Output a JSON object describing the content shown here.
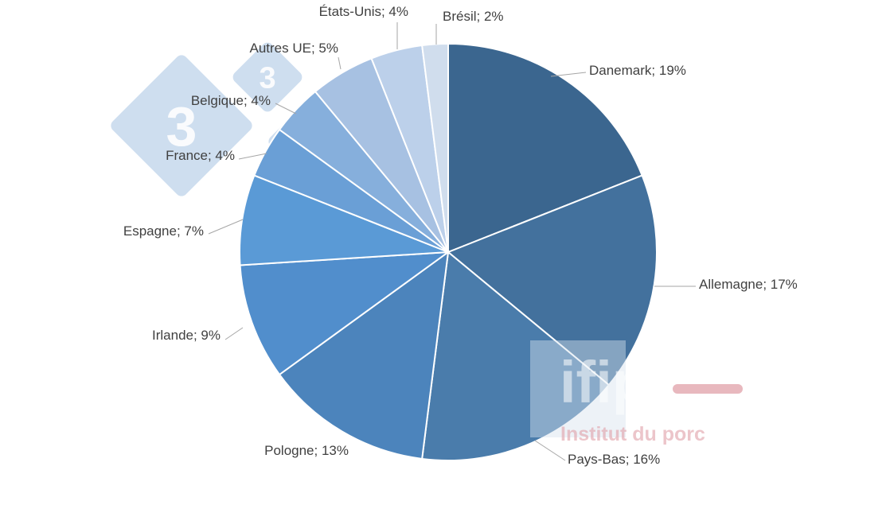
{
  "chart_data": {
    "type": "pie",
    "title": "",
    "start_angle_deg": 0,
    "direction": "clockwise",
    "legend": "none",
    "data_labels": "outside with leader lines",
    "slices": [
      {
        "name": "Danemark",
        "value": 19,
        "label": "Danemark; 19%",
        "color": "#3b668f"
      },
      {
        "name": "Allemagne",
        "value": 17,
        "label": "Allemagne; 17%",
        "color": "#43719d"
      },
      {
        "name": "Pays-Bas",
        "value": 16,
        "label": "Pays-Bas; 16%",
        "color": "#4a7cab"
      },
      {
        "name": "Pologne",
        "value": 13,
        "label": "Pologne; 13%",
        "color": "#4c84bc"
      },
      {
        "name": "Irlande",
        "value": 9,
        "label": "Irlande; 9%",
        "color": "#518ecc"
      },
      {
        "name": "Espagne",
        "value": 7,
        "label": "Espagne; 7%",
        "color": "#5a9ad6"
      },
      {
        "name": "France",
        "value": 4,
        "label": "France; 4%",
        "color": "#6a9fd6"
      },
      {
        "name": "Belgique",
        "value": 4,
        "label": "Belgique; 4%",
        "color": "#86afdc"
      },
      {
        "name": "Autres UE",
        "value": 5,
        "label": "Autres UE; 5%",
        "color": "#a7c1e2"
      },
      {
        "name": "États-Unis",
        "value": 4,
        "label": "États-Unis; 4%",
        "color": "#bcd0ea"
      },
      {
        "name": "Brésil",
        "value": 2,
        "label": "Brésil; 2%",
        "color": "#d0dded"
      }
    ]
  },
  "watermarks": {
    "ifip": {
      "text": "ifip",
      "subtitle": "Institut du porc",
      "color": "#e0a0a8"
    },
    "three_three": {
      "glyph": "3",
      "color": "#c5d8ec"
    }
  }
}
